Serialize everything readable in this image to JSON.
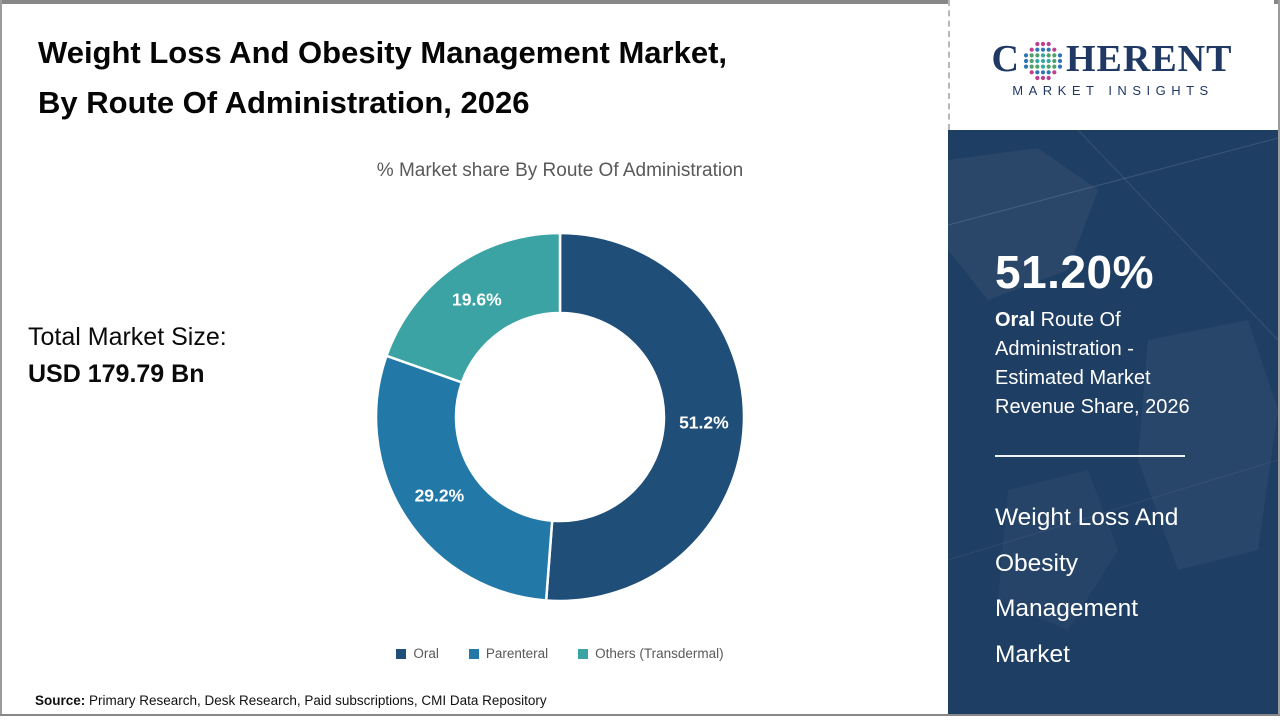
{
  "header": {
    "title_line1": "Weight Loss And Obesity Management Market,",
    "title_line2": "By Route Of Administration, 2026"
  },
  "chart_data": {
    "type": "pie",
    "donut": true,
    "title": "% Market share By Route Of Administration",
    "categories": [
      "Oral",
      "Parenteral",
      "Others (Transdermal)"
    ],
    "values": [
      51.2,
      29.2,
      19.6
    ],
    "labels": [
      "51.2%",
      "29.2%",
      "19.6%"
    ],
    "colors": [
      "#1F4E79",
      "#2279A8",
      "#3BA3A3"
    ],
    "start_angle_deg": 0,
    "direction": "clockwise",
    "legend_position": "bottom"
  },
  "left_panel": {
    "total_label": "Total Market Size:",
    "total_value": "USD 179.79 Bn"
  },
  "sidebar": {
    "stat_value": "51.20%",
    "stat_highlight": "Oral",
    "stat_description": " Route Of Administration - Estimated Market Revenue Share, 2026",
    "market_name": "Weight Loss And Obesity Management Market",
    "background_color": "#1F3E63"
  },
  "logo": {
    "prefix": "C",
    "suffix": "HERENT",
    "tagline": "MARKET INSIGHTS",
    "color": "#1F3864"
  },
  "footer": {
    "source_label": "Source:",
    "source_text": " Primary Research, Desk Research, Paid subscriptions, CMI Data Repository"
  }
}
